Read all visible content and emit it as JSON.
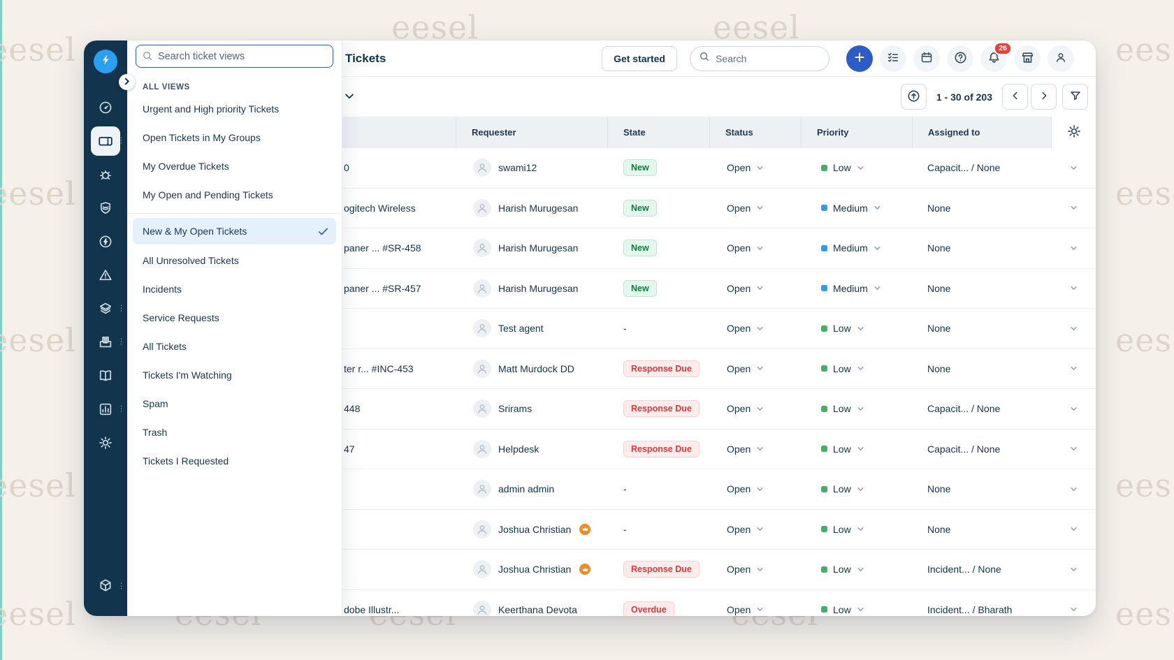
{
  "watermark": {
    "text": "eesel"
  },
  "colors": {
    "accent": "#2c5cc5",
    "sidebar-bg": "#12344d",
    "logo-blue": "#2ba0f0",
    "green-text": "#0e7d3f",
    "green-bg": "#e4f7ec",
    "red-text": "#d73a3d",
    "red-bg": "#fdecec",
    "priority-low": "#43b064",
    "priority-medium": "#2e9df0",
    "notification-red": "#e0443e",
    "selected-view-bg": "#e4f0fc"
  },
  "sidebar": {
    "logo_icon": "bolt-icon",
    "items": [
      {
        "id": "dashboard",
        "icon": "dashboard-icon",
        "active": false,
        "menu": false
      },
      {
        "id": "tickets",
        "icon": "ticket-icon",
        "active": true,
        "menu": true
      },
      {
        "id": "bug",
        "icon": "bug-icon",
        "active": false,
        "menu": false
      },
      {
        "id": "shield",
        "icon": "shield-icon",
        "active": false,
        "menu": false
      },
      {
        "id": "automation",
        "icon": "bolt-circle-icon",
        "active": false,
        "menu": false
      },
      {
        "id": "alerts",
        "icon": "alert-triangle-icon",
        "active": false,
        "menu": false
      },
      {
        "id": "assets",
        "icon": "layers-icon",
        "active": false,
        "menu": true
      },
      {
        "id": "documents",
        "icon": "document-icon",
        "active": false,
        "menu": true
      },
      {
        "id": "knowledge",
        "icon": "book-icon",
        "active": false,
        "menu": false
      },
      {
        "id": "analytics",
        "icon": "chart-icon",
        "active": false,
        "menu": true
      },
      {
        "id": "settings",
        "icon": "gear-icon",
        "active": false,
        "menu": false
      }
    ],
    "bottom_item": {
      "id": "packages",
      "icon": "cube-icon",
      "menu": true
    }
  },
  "view_panel": {
    "search_placeholder": "Search ticket views",
    "section_label": "ALL VIEWS",
    "items": [
      {
        "label": "Urgent and High priority Tickets"
      },
      {
        "label": "Open Tickets in My Groups"
      },
      {
        "label": "My Overdue Tickets"
      },
      {
        "label": "My Open and Pending Tickets",
        "divider_after": true
      },
      {
        "label": "New & My Open Tickets",
        "selected": true
      },
      {
        "label": "All Unresolved Tickets"
      },
      {
        "label": "Incidents"
      },
      {
        "label": "Service Requests"
      },
      {
        "label": "All Tickets"
      },
      {
        "label": "Tickets I'm Watching"
      },
      {
        "label": "Spam"
      },
      {
        "label": "Trash"
      },
      {
        "label": "Tickets I Requested"
      }
    ]
  },
  "topbar": {
    "title": "Tickets",
    "get_started_label": "Get started",
    "search_placeholder": "Search",
    "notification_count": "26"
  },
  "toolbar": {
    "pagination_label": "1 - 30 of 203"
  },
  "table": {
    "columns": [
      "",
      "Requester",
      "State",
      "Status",
      "Priority",
      "Assigned to"
    ],
    "rows": [
      {
        "subject": "0",
        "requester": "swami12",
        "crown": false,
        "state": "New",
        "state_type": "new",
        "status": "Open",
        "priority": "Low",
        "priority_level": "low",
        "assigned": "Capacit... / None"
      },
      {
        "subject": "ogitech Wireless",
        "requester": "Harish Murugesan",
        "crown": false,
        "state": "New",
        "state_type": "new",
        "status": "Open",
        "priority": "Medium",
        "priority_level": "medium",
        "assigned": "None"
      },
      {
        "subject": "paner ...  #SR-458",
        "requester": "Harish Murugesan",
        "crown": false,
        "state": "New",
        "state_type": "new",
        "status": "Open",
        "priority": "Medium",
        "priority_level": "medium",
        "assigned": "None"
      },
      {
        "subject": "paner ...  #SR-457",
        "requester": "Harish Murugesan",
        "crown": false,
        "state": "New",
        "state_type": "new",
        "status": "Open",
        "priority": "Medium",
        "priority_level": "medium",
        "assigned": "None"
      },
      {
        "subject": "",
        "requester": "Test agent",
        "crown": false,
        "state": "-",
        "state_type": "none",
        "status": "Open",
        "priority": "Low",
        "priority_level": "low",
        "assigned": "None"
      },
      {
        "subject": "ter r...  #INC-453",
        "requester": "Matt Murdock DD",
        "crown": false,
        "state": "Response Due",
        "state_type": "due",
        "status": "Open",
        "priority": "Low",
        "priority_level": "low",
        "assigned": "None"
      },
      {
        "subject": "448",
        "requester": "Srirams",
        "crown": false,
        "state": "Response Due",
        "state_type": "due",
        "status": "Open",
        "priority": "Low",
        "priority_level": "low",
        "assigned": "Capacit... / None"
      },
      {
        "subject": "47",
        "requester": "Helpdesk",
        "crown": false,
        "state": "Response Due",
        "state_type": "due",
        "status": "Open",
        "priority": "Low",
        "priority_level": "low",
        "assigned": "Capacit... / None"
      },
      {
        "subject": "",
        "requester": "admin admin",
        "crown": false,
        "state": "-",
        "state_type": "none",
        "status": "Open",
        "priority": "Low",
        "priority_level": "low",
        "assigned": "None"
      },
      {
        "subject": "",
        "requester": "Joshua Christian",
        "crown": true,
        "state": "-",
        "state_type": "none",
        "status": "Open",
        "priority": "Low",
        "priority_level": "low",
        "assigned": "None"
      },
      {
        "subject": "",
        "requester": "Joshua Christian",
        "crown": true,
        "state": "Response Due",
        "state_type": "due",
        "status": "Open",
        "priority": "Low",
        "priority_level": "low",
        "assigned": "Incident... / None"
      },
      {
        "subject": "dobe Illustr...",
        "requester": "Keerthana Devota",
        "crown": false,
        "state": "Overdue",
        "state_type": "overdue",
        "status": "Open",
        "priority": "Low",
        "priority_level": "low",
        "assigned": "Incident... / Bharath"
      }
    ]
  }
}
